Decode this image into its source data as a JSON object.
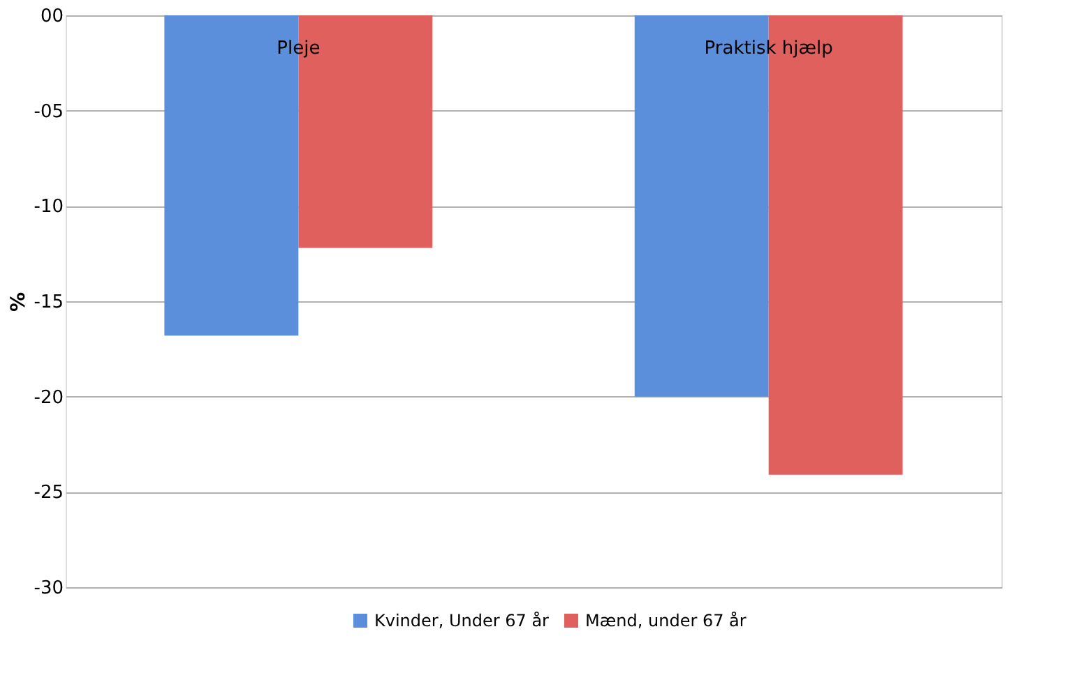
{
  "chart_data": {
    "type": "bar",
    "ylabel": "%",
    "categories": [
      "Pleje",
      "Praktisk hjælp"
    ],
    "series": [
      {
        "name": "Kvinder, Under 67 år",
        "color": "#5b8fdc",
        "values": [
          -16.8,
          -20.0
        ]
      },
      {
        "name": "Mænd, under 67 år",
        "color": "#e0605e",
        "values": [
          -12.2,
          -24.1
        ]
      }
    ],
    "ylim": [
      -30,
      0
    ],
    "yticks": [
      {
        "value": 0,
        "label": "00"
      },
      {
        "value": -5,
        "label": "-05"
      },
      -10,
      -15,
      -20,
      -25,
      -30
    ],
    "grid": "y",
    "legend": "bottom"
  }
}
